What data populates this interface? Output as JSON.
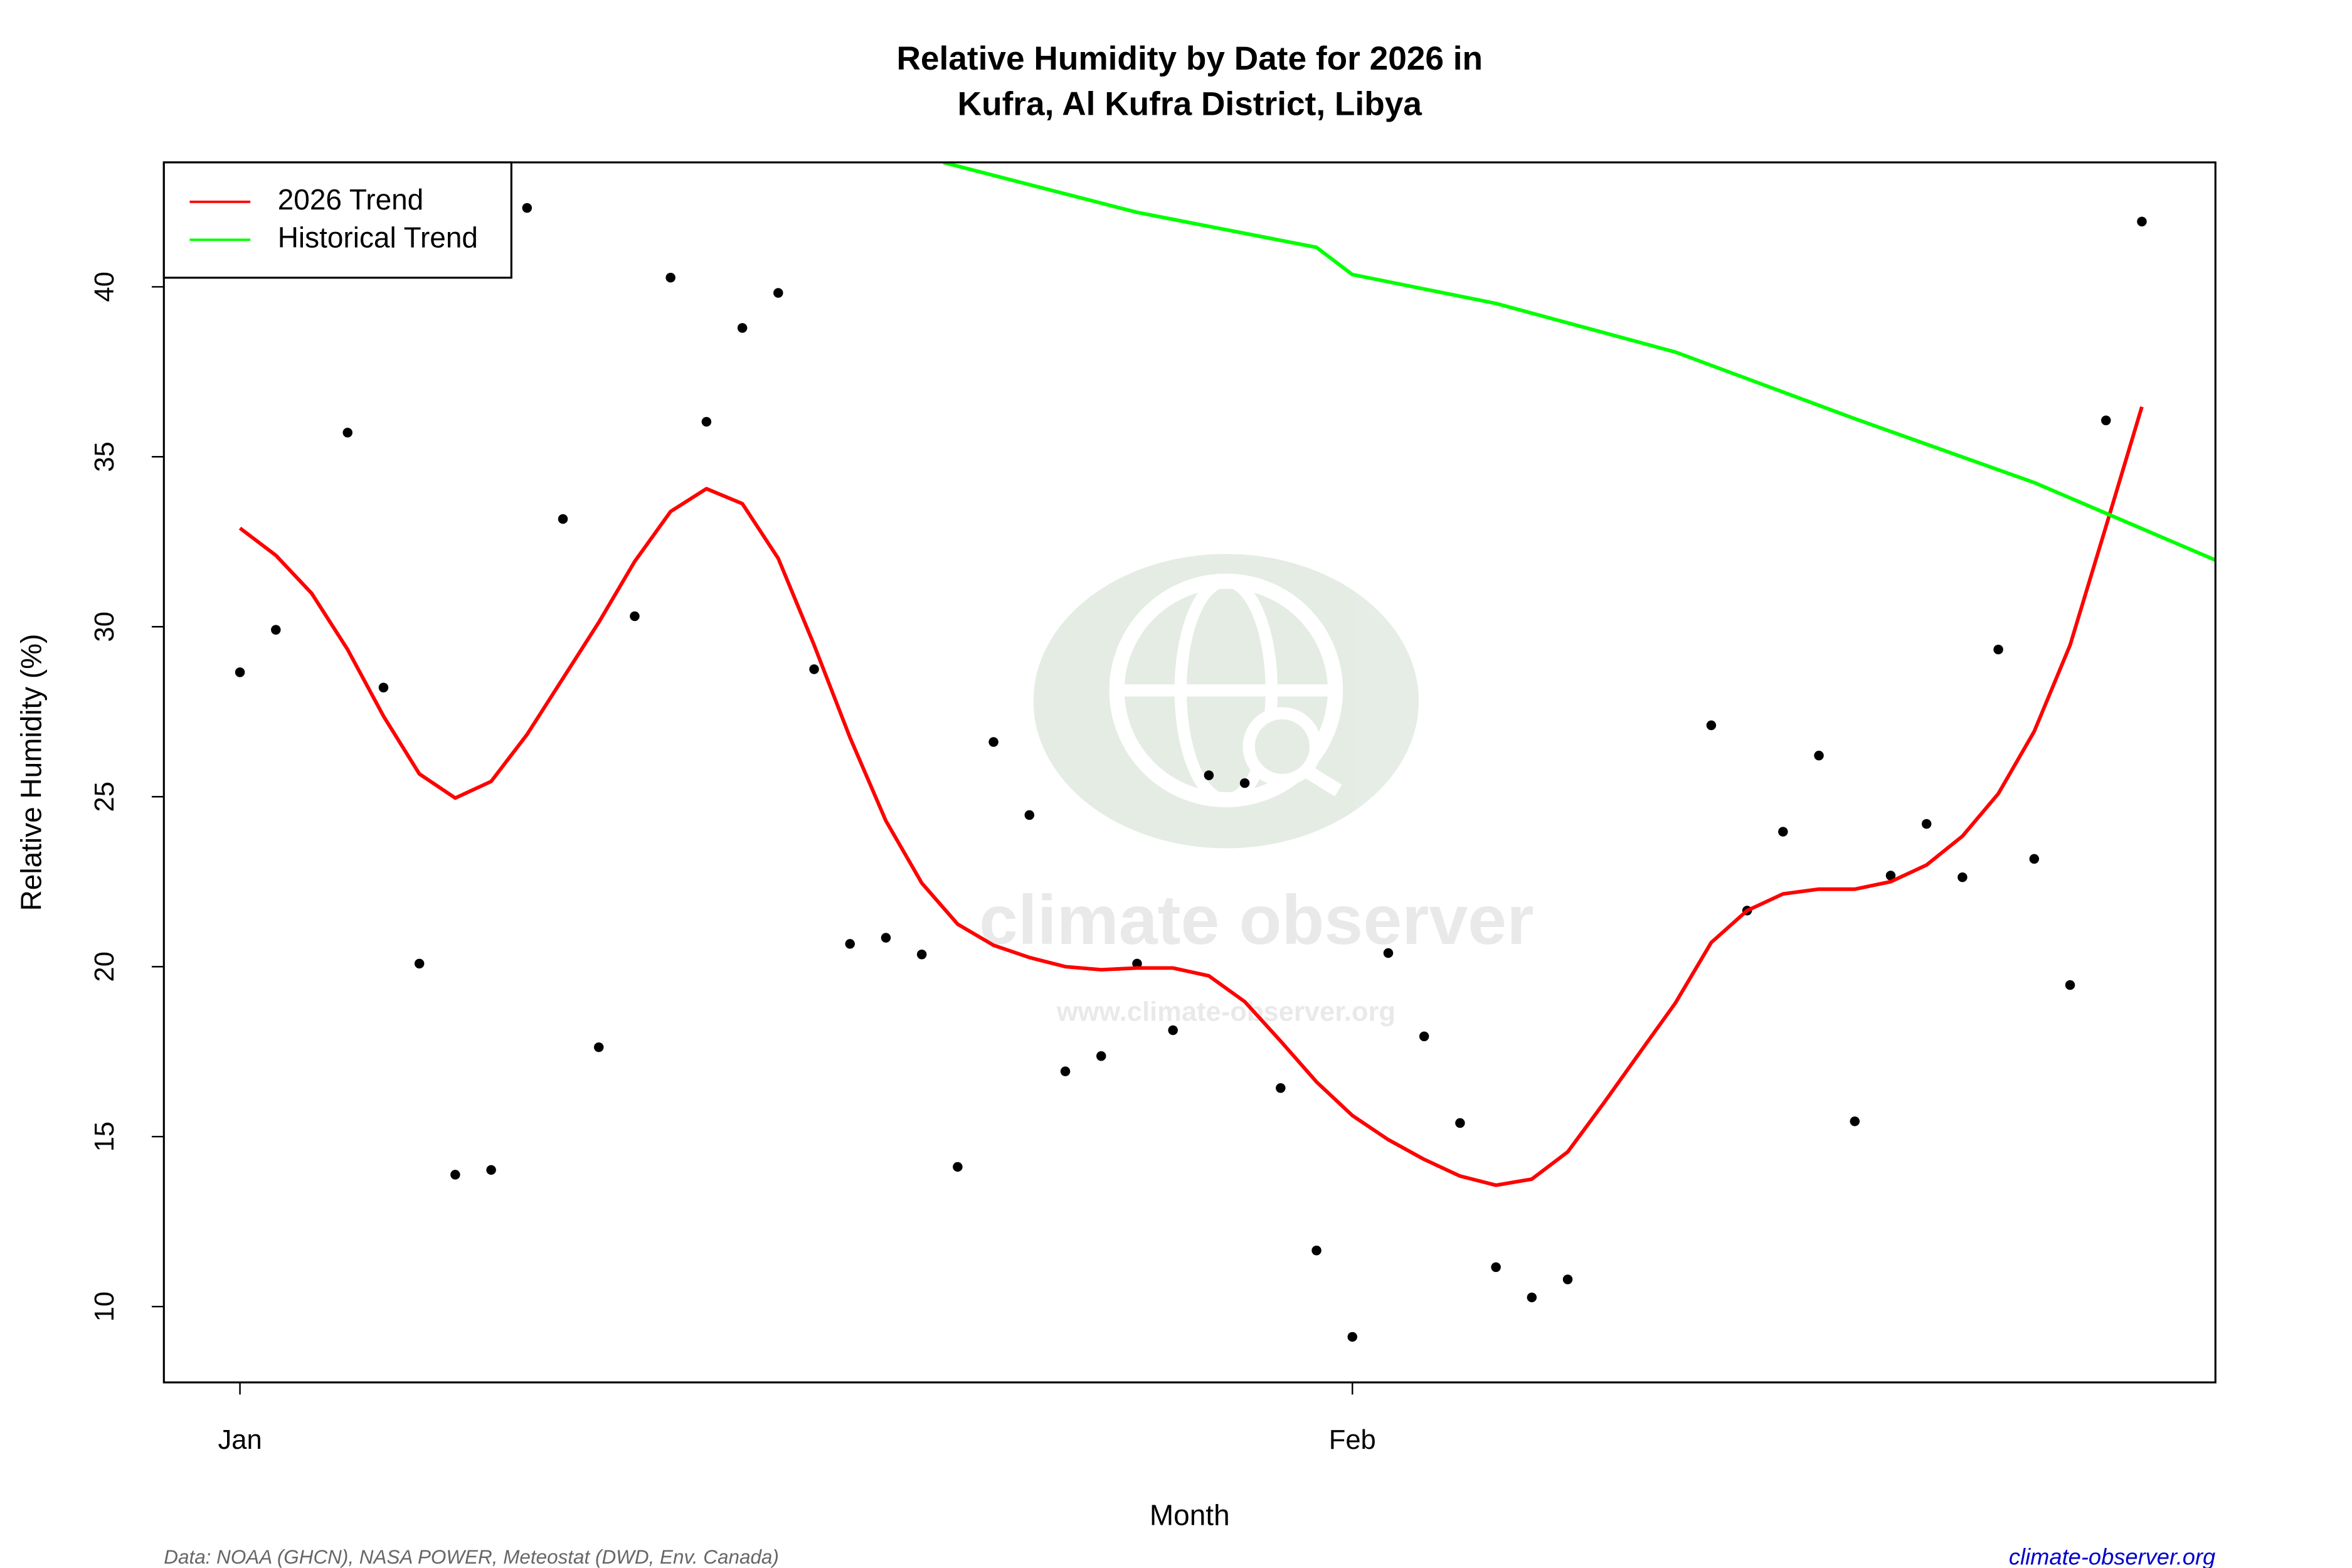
{
  "chart_data": {
    "type": "scatter",
    "title": [
      "Relative Humidity by Date for 2026 in",
      "Kufra, Al Kufra District, Libya"
    ],
    "x_label": "Month",
    "y_label": "Relative Humidity (%)",
    "xlim": [
      -2.12,
      55.05
    ],
    "ylim": [
      7.77,
      43.66
    ],
    "xticks": [
      {
        "value": 0,
        "label": "Jan"
      },
      {
        "value": 31,
        "label": "Feb"
      }
    ],
    "yticks": [
      10,
      15,
      20,
      25,
      30,
      35,
      40
    ],
    "legend": "top-left",
    "series": [
      {
        "type": "scatter",
        "color": "#000000",
        "x": [
          0,
          1,
          3,
          4,
          5,
          6,
          7,
          8,
          9,
          10,
          11,
          12,
          13,
          14,
          15,
          16,
          17,
          18,
          19,
          20,
          21,
          22,
          23,
          24,
          25,
          26,
          27,
          28,
          29,
          30,
          31,
          32,
          33,
          34,
          35,
          36,
          37,
          41,
          42,
          43,
          44,
          45,
          46,
          47,
          48,
          49,
          50,
          51,
          52,
          53
        ],
        "values": [
          28.66,
          29.91,
          35.71,
          28.21,
          20.09,
          13.88,
          14.02,
          42.32,
          33.17,
          17.63,
          30.31,
          40.27,
          36.03,
          38.79,
          39.82,
          28.75,
          20.67,
          20.85,
          20.36,
          14.11,
          26.61,
          24.46,
          16.92,
          17.37,
          20.09,
          18.13,
          25.63,
          25.4,
          16.43,
          11.65,
          9.11,
          20.4,
          17.95,
          15.4,
          11.16,
          10.27,
          10.8,
          27.1,
          21.65,
          23.97,
          26.21,
          15.45,
          22.68,
          24.2,
          22.63,
          29.33,
          23.17,
          19.46,
          36.07,
          41.92
        ]
      },
      {
        "type": "line",
        "name": "2026 Trend",
        "color": "#ff0000",
        "x": [
          0,
          1,
          2,
          3,
          4,
          5,
          6,
          7,
          8,
          9,
          10,
          11,
          12,
          13,
          14,
          15,
          16,
          17,
          18,
          19,
          20,
          21,
          22,
          23,
          24,
          25,
          26,
          27,
          28,
          29,
          30,
          31,
          32,
          33,
          34,
          35,
          36,
          37,
          38,
          39,
          40,
          41,
          42,
          43,
          44,
          45,
          46,
          47,
          48,
          49,
          50,
          51,
          52,
          53
        ],
        "values": [
          32.9,
          32.1,
          30.98,
          29.33,
          27.37,
          25.67,
          24.96,
          25.45,
          26.83,
          28.48,
          30.13,
          31.92,
          33.39,
          34.06,
          33.62,
          32.01,
          29.46,
          26.74,
          24.29,
          22.46,
          21.25,
          20.63,
          20.27,
          20.0,
          19.91,
          19.96,
          19.96,
          19.73,
          18.97,
          17.81,
          16.61,
          15.62,
          14.91,
          14.33,
          13.84,
          13.57,
          13.75,
          14.55,
          15.98,
          17.46,
          18.93,
          20.71,
          21.65,
          22.14,
          22.28,
          22.28,
          22.5,
          22.99,
          23.84,
          25.09,
          26.92,
          29.46,
          32.95,
          36.47
        ]
      },
      {
        "type": "line",
        "name": "Historical Trend",
        "color": "#00ff00",
        "x": [
          19.6,
          25,
          30,
          31,
          35,
          40,
          45,
          50,
          55.05
        ],
        "values": [
          43.66,
          42.19,
          41.16,
          40.36,
          39.51,
          38.08,
          36.12,
          34.24,
          31.96
        ]
      }
    ]
  },
  "watermark": {
    "name": "climate observer",
    "url": "www.climate-observer.org"
  },
  "footer": {
    "source": "Data: NOAA (GHCN), NASA POWER, Meteostat (DWD, Env. Canada)",
    "site": "climate-observer.org"
  }
}
